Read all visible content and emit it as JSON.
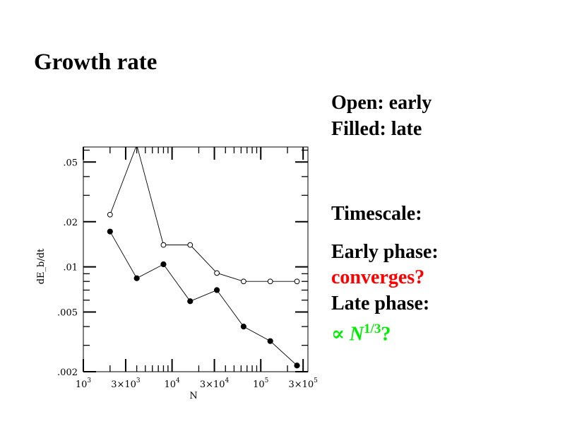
{
  "slide": {
    "title": "Growth rate",
    "notes": {
      "open_label": "Open: early",
      "filled_label": "Filled: late",
      "timescale": "Timescale:",
      "early_phase": "Early phase:",
      "early_answer": "converges?",
      "late_phase": "Late phase:",
      "late_answer_prefix": "∝ ",
      "late_answer_var": "N",
      "late_answer_exp": "1/3",
      "late_answer_suffix": "?"
    },
    "colors": {
      "early_answer": "#ff0000",
      "late_answer": "#00ee00"
    }
  },
  "chart_data": {
    "type": "line",
    "xscale": "log",
    "yscale": "log",
    "xlabel": "N",
    "ylabel": "dE_b/dt",
    "xlim": [
      1000,
      340000
    ],
    "ylim": [
      0.002,
      0.063
    ],
    "xticks": [
      {
        "v": 1000,
        "base": "10",
        "exp": "3"
      },
      {
        "v": 3000,
        "base": "3×10",
        "exp": "3"
      },
      {
        "v": 10000,
        "base": "10",
        "exp": "4"
      },
      {
        "v": 30000,
        "base": "3×10",
        "exp": "4"
      },
      {
        "v": 100000,
        "base": "10",
        "exp": "5"
      },
      {
        "v": 300000,
        "base": "3×10",
        "exp": "5"
      }
    ],
    "yticks": [
      {
        "v": 0.002,
        "label": ".002"
      },
      {
        "v": 0.005,
        "label": ".005"
      },
      {
        "v": 0.01,
        "label": ".01"
      },
      {
        "v": 0.02,
        "label": ".02"
      },
      {
        "v": 0.05,
        "label": ".05"
      }
    ],
    "x": [
      2000,
      4000,
      8000,
      16000,
      32000,
      64000,
      128000,
      256000
    ],
    "series": [
      {
        "name": "Open (early)",
        "marker": "open-circle",
        "values": [
          0.0223,
          0.065,
          0.014,
          0.014,
          0.0091,
          0.008,
          0.008,
          0.008
        ]
      },
      {
        "name": "Filled (late)",
        "marker": "filled-circle",
        "values": [
          0.0172,
          0.0084,
          0.0104,
          0.0059,
          0.007,
          0.004,
          0.0032,
          0.0022
        ]
      }
    ],
    "grid": false
  }
}
